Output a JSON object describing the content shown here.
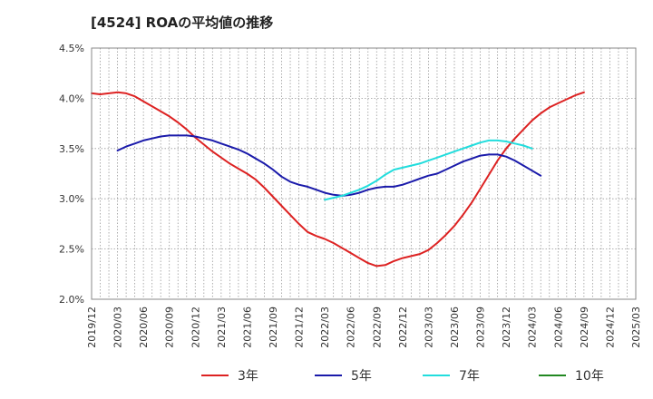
{
  "chart_data": {
    "type": "line",
    "title": "[4524]  ROAの平均値の推移",
    "xlabel": "",
    "ylabel": "",
    "x_ticks": [
      "2019/12",
      "2020/03",
      "2020/06",
      "2020/09",
      "2020/12",
      "2021/03",
      "2021/06",
      "2021/09",
      "2021/12",
      "2022/03",
      "2022/06",
      "2022/09",
      "2022/12",
      "2023/03",
      "2023/06",
      "2023/09",
      "2023/12",
      "2024/03",
      "2024/06",
      "2024/09",
      "2024/12",
      "2025/03"
    ],
    "y_ticks": [
      "2.0%",
      "2.5%",
      "3.0%",
      "3.5%",
      "4.0%",
      "4.5%"
    ],
    "ylim": [
      2.0,
      4.5
    ],
    "grid": true,
    "legend_position": "bottom",
    "series": [
      {
        "name": "3年",
        "color": "#dd2222",
        "start_index": 0,
        "values": [
          4.05,
          4.04,
          4.05,
          4.06,
          4.05,
          4.02,
          3.97,
          3.92,
          3.87,
          3.82,
          3.76,
          3.69,
          3.61,
          3.54,
          3.47,
          3.41,
          3.35,
          3.3,
          3.25,
          3.19,
          3.11,
          3.02,
          2.93,
          2.84,
          2.75,
          2.67,
          2.63,
          2.6,
          2.56,
          2.51,
          2.46,
          2.41,
          2.36,
          2.33,
          2.34,
          2.38,
          2.41,
          2.43,
          2.45,
          2.49,
          2.56,
          2.64,
          2.73,
          2.84,
          2.96,
          3.1,
          3.24,
          3.38,
          3.5,
          3.6,
          3.69,
          3.78,
          3.85,
          3.91,
          3.95,
          3.99,
          4.03,
          4.06
        ]
      },
      {
        "name": "5年",
        "color": "#1a1aaa",
        "start_index": 3,
        "values": [
          3.48,
          3.52,
          3.55,
          3.58,
          3.6,
          3.62,
          3.63,
          3.63,
          3.63,
          3.62,
          3.6,
          3.58,
          3.55,
          3.52,
          3.49,
          3.45,
          3.4,
          3.35,
          3.29,
          3.22,
          3.17,
          3.14,
          3.12,
          3.09,
          3.06,
          3.04,
          3.03,
          3.04,
          3.06,
          3.09,
          3.11,
          3.12,
          3.12,
          3.14,
          3.17,
          3.2,
          3.23,
          3.25,
          3.29,
          3.33,
          3.37,
          3.4,
          3.43,
          3.44,
          3.44,
          3.42,
          3.38,
          3.33,
          3.28,
          3.23
        ]
      },
      {
        "name": "7年",
        "color": "#22dddd",
        "start_index": 27,
        "values": [
          2.99,
          3.01,
          3.03,
          3.06,
          3.09,
          3.13,
          3.18,
          3.24,
          3.29,
          3.31,
          3.33,
          3.35,
          3.38,
          3.41,
          3.44,
          3.47,
          3.5,
          3.53,
          3.56,
          3.58,
          3.58,
          3.57,
          3.55,
          3.53,
          3.5
        ]
      },
      {
        "name": "10年",
        "color": "#228822",
        "start_index": 0,
        "values": []
      }
    ]
  }
}
